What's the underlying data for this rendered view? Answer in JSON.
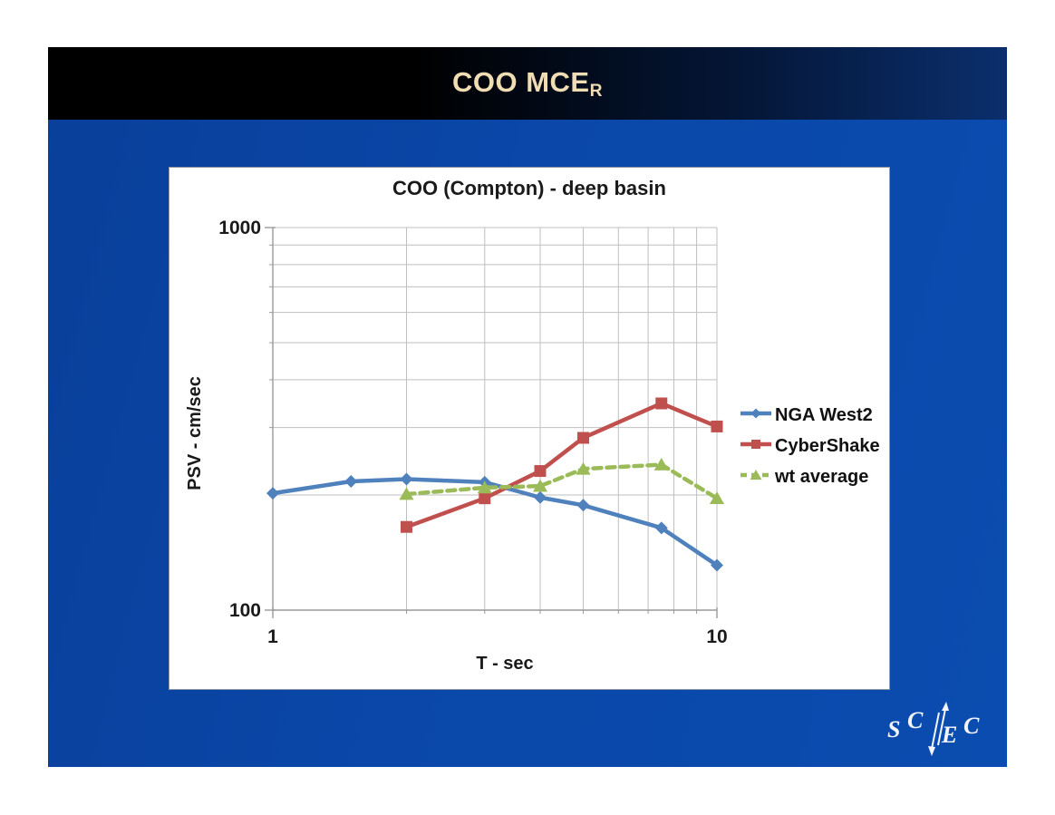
{
  "slide": {
    "title": "COO MCE",
    "title_subscript": "R"
  },
  "theme": {
    "slide_background": "#0a47a8",
    "header_gradient_left": "#000000",
    "header_gradient_right": "#0b2f6d",
    "slide_title_color": "#F0DDB4",
    "chart_background": "#ffffff",
    "gridline_color": "#bfbfbf",
    "axis_color": "#9a9a9a",
    "chart_text_color": "#1a1a1a",
    "logo_color": "#f2f5fb"
  },
  "chart_data": {
    "type": "line",
    "title": "COO (Compton) - deep basin",
    "xlabel": "T - sec",
    "ylabel": "PSV - cm/sec",
    "x_scale": "log",
    "y_scale": "log",
    "xlim": [
      1,
      10
    ],
    "ylim": [
      100,
      1000
    ],
    "grid": true,
    "legend_position": "right",
    "x_ticks": [
      {
        "value": 1,
        "label": "1"
      },
      {
        "value": 10,
        "label": "10"
      }
    ],
    "y_ticks": [
      {
        "value": 100,
        "label": "100"
      },
      {
        "value": 1000,
        "label": "1000"
      }
    ],
    "x_minor_gridlines": [
      2,
      3,
      4,
      5,
      6,
      7,
      8,
      9,
      10
    ],
    "y_minor_gridlines": [
      200,
      300,
      400,
      500,
      600,
      700,
      800,
      900,
      1000
    ],
    "series": [
      {
        "name": "NGA West2",
        "color": "#4F81BD",
        "marker": "diamond",
        "dash": "solid",
        "x": [
          1,
          1.5,
          2,
          3,
          4,
          5,
          7.5,
          10
        ],
        "y": [
          202,
          217,
          220,
          216,
          197,
          188,
          164,
          131
        ]
      },
      {
        "name": "CyberShake",
        "color": "#C0504D",
        "marker": "square",
        "dash": "solid",
        "x": [
          2,
          3,
          4,
          5,
          7.5,
          10
        ],
        "y": [
          165,
          196,
          231,
          282,
          347,
          302
        ]
      },
      {
        "name": "wt average",
        "color": "#9BBB59",
        "marker": "triangle",
        "dash": "dashed",
        "x": [
          2,
          3,
          4,
          5,
          7.5,
          10
        ],
        "y": [
          201,
          209,
          211,
          234,
          240,
          196
        ]
      }
    ]
  },
  "footer": {
    "logo_chars": [
      "S",
      "C",
      "E",
      "C"
    ]
  }
}
